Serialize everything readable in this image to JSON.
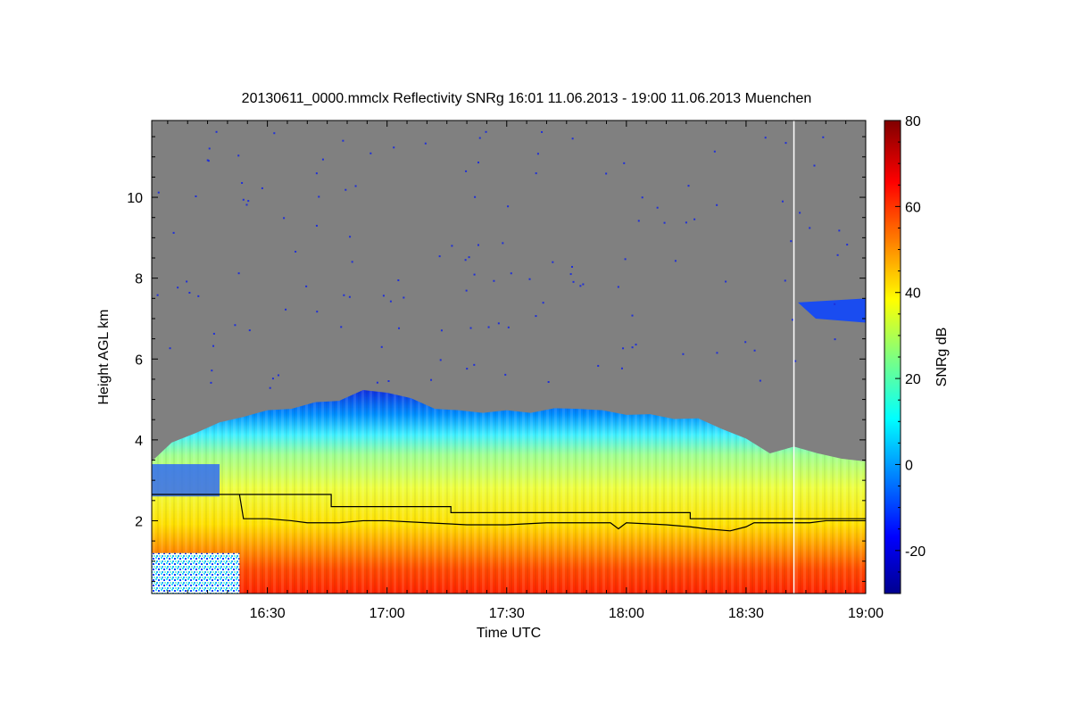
{
  "chart_data": {
    "type": "heatmap",
    "title": "20130611_0000.mmclx Reflectivity SNRg   16:01 11.06.2013 - 19:00 11.06.2013 Muenchen",
    "xlabel": "Time UTC",
    "ylabel": "Height AGL km",
    "colorbar_label": "SNRg dB",
    "x_tick_labels": [
      "16:30",
      "17:00",
      "17:30",
      "18:00",
      "18:30",
      "19:00"
    ],
    "x_tick_minutes": [
      990,
      1020,
      1050,
      1080,
      1110,
      1140
    ],
    "x_range_minutes": [
      961,
      1140
    ],
    "y_ticks": [
      2,
      4,
      6,
      8,
      10
    ],
    "y_range": [
      0.2,
      11.9
    ],
    "colorbar_ticks": [
      -20,
      0,
      20,
      40,
      60,
      80
    ],
    "colorbar_range": [
      -30,
      80
    ],
    "colormap": "jet",
    "no_signal_color": "#808080",
    "echo_top_profile": [
      {
        "t": 961,
        "h": 3.5
      },
      {
        "t": 966,
        "h": 3.9
      },
      {
        "t": 972,
        "h": 4.2
      },
      {
        "t": 978,
        "h": 4.4
      },
      {
        "t": 984,
        "h": 4.6
      },
      {
        "t": 990,
        "h": 4.7
      },
      {
        "t": 996,
        "h": 4.8
      },
      {
        "t": 1002,
        "h": 4.9
      },
      {
        "t": 1008,
        "h": 5.0
      },
      {
        "t": 1014,
        "h": 5.2
      },
      {
        "t": 1020,
        "h": 5.2
      },
      {
        "t": 1026,
        "h": 5.0
      },
      {
        "t": 1032,
        "h": 4.8
      },
      {
        "t": 1038,
        "h": 4.7
      },
      {
        "t": 1044,
        "h": 4.7
      },
      {
        "t": 1050,
        "h": 4.7
      },
      {
        "t": 1056,
        "h": 4.7
      },
      {
        "t": 1062,
        "h": 4.75
      },
      {
        "t": 1068,
        "h": 4.8
      },
      {
        "t": 1074,
        "h": 4.7
      },
      {
        "t": 1080,
        "h": 4.65
      },
      {
        "t": 1086,
        "h": 4.6
      },
      {
        "t": 1092,
        "h": 4.55
      },
      {
        "t": 1098,
        "h": 4.5
      },
      {
        "t": 1104,
        "h": 4.3
      },
      {
        "t": 1110,
        "h": 4.0
      },
      {
        "t": 1116,
        "h": 3.7
      },
      {
        "t": 1122,
        "h": 3.8
      },
      {
        "t": 1128,
        "h": 3.7
      },
      {
        "t": 1134,
        "h": 3.5
      },
      {
        "t": 1140,
        "h": 3.5
      }
    ],
    "step_line": [
      {
        "t": 961,
        "h": 2.65
      },
      {
        "t": 1006,
        "h": 2.65
      },
      {
        "t": 1006,
        "h": 2.35
      },
      {
        "t": 1036,
        "h": 2.35
      },
      {
        "t": 1036,
        "h": 2.2
      },
      {
        "t": 1096,
        "h": 2.2
      },
      {
        "t": 1096,
        "h": 2.05
      },
      {
        "t": 1140,
        "h": 2.05
      }
    ],
    "lower_line": [
      {
        "t": 983,
        "h": 2.65
      },
      {
        "t": 984,
        "h": 2.05
      },
      {
        "t": 990,
        "h": 2.05
      },
      {
        "t": 996,
        "h": 2.0
      },
      {
        "t": 1000,
        "h": 1.95
      },
      {
        "t": 1008,
        "h": 1.95
      },
      {
        "t": 1014,
        "h": 2.0
      },
      {
        "t": 1020,
        "h": 2.0
      },
      {
        "t": 1030,
        "h": 1.95
      },
      {
        "t": 1040,
        "h": 1.9
      },
      {
        "t": 1050,
        "h": 1.9
      },
      {
        "t": 1060,
        "h": 1.95
      },
      {
        "t": 1070,
        "h": 1.95
      },
      {
        "t": 1076,
        "h": 1.95
      },
      {
        "t": 1078,
        "h": 1.8
      },
      {
        "t": 1080,
        "h": 1.95
      },
      {
        "t": 1090,
        "h": 1.9
      },
      {
        "t": 1096,
        "h": 1.85
      },
      {
        "t": 1100,
        "h": 1.8
      },
      {
        "t": 1106,
        "h": 1.75
      },
      {
        "t": 1110,
        "h": 1.85
      },
      {
        "t": 1112,
        "h": 1.95
      },
      {
        "t": 1126,
        "h": 1.95
      },
      {
        "t": 1130,
        "h": 2.0
      },
      {
        "t": 1140,
        "h": 2.0
      }
    ],
    "vertical_marker_minutes": 1122,
    "upper_cloud_patch": {
      "t_start": 1123,
      "t_end": 1140,
      "h_top": 7.4,
      "h_bottom": 7.0
    }
  }
}
